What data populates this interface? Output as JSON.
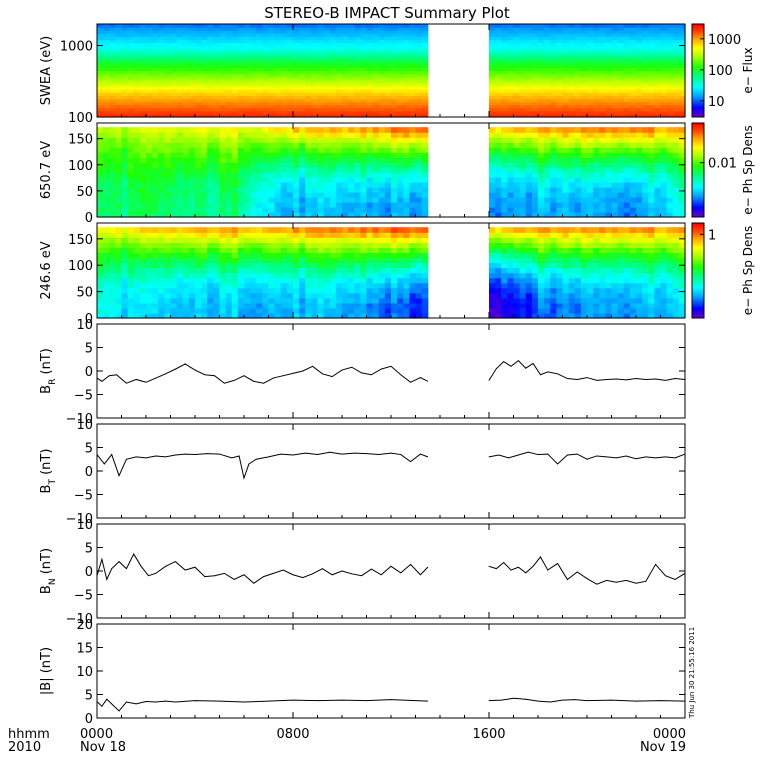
{
  "title": "STEREO-B IMPACT Summary Plot",
  "x_axis": {
    "corner_label_top": "hhmm",
    "corner_label_bottom": "2010",
    "date_start": "Nov 18",
    "date_end": "Nov 19",
    "ticks": [
      {
        "hour": 0,
        "label": "0000"
      },
      {
        "hour": 8,
        "label": "0800"
      },
      {
        "hour": 16,
        "label": "1600"
      },
      {
        "hour": 24,
        "label": "0000"
      }
    ],
    "range_hours": [
      0,
      24
    ]
  },
  "data_gap_hours": [
    13.5,
    16
  ],
  "timestamp_stamp": "Thu Jun 30 21:55:16 2011",
  "colors": {
    "palette": [
      "#6a00c8",
      "#0000ff",
      "#00a0ff",
      "#00ffff",
      "#00ff80",
      "#20ff00",
      "#a0ff00",
      "#ffff00",
      "#ffa000",
      "#ff4000",
      "#ff0000"
    ]
  },
  "panels": {
    "swea": {
      "ylabel": "SWEA (eV)",
      "yscale": "log",
      "ylim": [
        100,
        2000
      ],
      "ticks": [
        {
          "v": 100,
          "label": "100"
        },
        {
          "v": 1000,
          "label": "1000"
        }
      ],
      "colorbar": {
        "label": "e− Flux",
        "scale": "log",
        "range": [
          3,
          3000
        ],
        "ticks": [
          {
            "v": 10,
            "label": "10"
          },
          {
            "v": 100,
            "label": "100"
          },
          {
            "v": 1000,
            "label": "1000"
          }
        ]
      }
    },
    "pad650": {
      "ylabel": "650.7 eV",
      "ylim": [
        0,
        180
      ],
      "ticks": [
        {
          "v": 0,
          "label": "0"
        },
        {
          "v": 50,
          "label": "50"
        },
        {
          "v": 100,
          "label": "100"
        },
        {
          "v": 150,
          "label": "150"
        }
      ],
      "colorbar": {
        "label": "e− Ph Sp Dens",
        "scale": "log",
        "range": [
          0.0015,
          0.04
        ],
        "ticks": [
          {
            "v": 0.01,
            "label": "0.01"
          }
        ]
      }
    },
    "pad246": {
      "ylabel": "246.6 eV",
      "ylim": [
        0,
        180
      ],
      "ticks": [
        {
          "v": 0,
          "label": "0"
        },
        {
          "v": 50,
          "label": "50"
        },
        {
          "v": 100,
          "label": "100"
        },
        {
          "v": 150,
          "label": "150"
        }
      ],
      "colorbar": {
        "label": "e− Ph Sp Dens",
        "scale": "log",
        "range": [
          0.05,
          1.5
        ],
        "ticks": [
          {
            "v": 1,
            "label": "1"
          }
        ]
      }
    },
    "br": {
      "ylabel_base": "B",
      "ylabel_sub": "R",
      "ylabel_unit": " (nT)",
      "ylim": [
        -10,
        10
      ],
      "ticks": [
        {
          "v": -10,
          "label": "−10"
        },
        {
          "v": -5,
          "label": "−5"
        },
        {
          "v": 0,
          "label": "0"
        },
        {
          "v": 5,
          "label": "5"
        },
        {
          "v": 10,
          "label": "10"
        }
      ]
    },
    "bt": {
      "ylabel_base": "B",
      "ylabel_sub": "T",
      "ylabel_unit": " (nT)",
      "ylim": [
        -10,
        10
      ],
      "ticks": [
        {
          "v": -10,
          "label": "−10"
        },
        {
          "v": -5,
          "label": "−5"
        },
        {
          "v": 0,
          "label": "0"
        },
        {
          "v": 5,
          "label": "5"
        },
        {
          "v": 10,
          "label": "10"
        }
      ]
    },
    "bn": {
      "ylabel_base": "B",
      "ylabel_sub": "N",
      "ylabel_unit": " (nT)",
      "ylim": [
        -10,
        10
      ],
      "ticks": [
        {
          "v": -10,
          "label": "−10"
        },
        {
          "v": -5,
          "label": "−5"
        },
        {
          "v": 0,
          "label": "0"
        },
        {
          "v": 5,
          "label": "5"
        },
        {
          "v": 10,
          "label": "10"
        }
      ]
    },
    "bmag": {
      "ylabel": "|B| (nT)",
      "ylim": [
        0,
        20
      ],
      "ticks": [
        {
          "v": 0,
          "label": "0"
        },
        {
          "v": 5,
          "label": "5"
        },
        {
          "v": 10,
          "label": "10"
        },
        {
          "v": 15,
          "label": "15"
        },
        {
          "v": 20,
          "label": "20"
        }
      ]
    }
  },
  "chart_data": [
    {
      "type": "heatmap",
      "panel": "swea",
      "title": "STEREO-B IMPACT Summary Plot",
      "xlabel": "",
      "ylabel": "SWEA (eV)",
      "yscale": "log",
      "ylim": [
        100,
        2000
      ],
      "y": [
        100,
        150,
        250,
        400,
        600,
        1000,
        1500,
        2000
      ],
      "z_log_profile": [
        3.4,
        3.0,
        2.6,
        2.1,
        1.7,
        1.2,
        0.9,
        0.6
      ],
      "colorbar_label": "e− Flux"
    },
    {
      "type": "heatmap",
      "panel": "pad650",
      "ylabel": "650.7 eV",
      "ylim": [
        0,
        180
      ],
      "x": [
        0,
        2,
        4,
        6,
        7.5,
        9,
        11,
        13,
        16.2,
        18,
        20,
        22,
        24
      ],
      "levels_low_pitch": [
        0.4,
        0.42,
        0.38,
        0.4,
        0.22,
        0.22,
        0.22,
        0.2,
        0.2,
        0.22,
        0.22,
        0.2,
        0.3
      ],
      "levels_high_pitch": [
        0.62,
        0.64,
        0.68,
        0.7,
        0.76,
        0.78,
        0.82,
        0.9,
        0.78,
        0.82,
        0.86,
        0.88,
        0.8
      ],
      "colorbar_label": "e− Ph Sp Dens"
    },
    {
      "type": "heatmap",
      "panel": "pad246",
      "ylabel": "246.6 eV",
      "ylim": [
        0,
        180
      ],
      "x": [
        0,
        2,
        4,
        6,
        7.5,
        9,
        11,
        13,
        16.2,
        18,
        20,
        22,
        24
      ],
      "levels_low_pitch": [
        0.3,
        0.24,
        0.22,
        0.24,
        0.22,
        0.22,
        0.2,
        0.12,
        0.05,
        0.15,
        0.2,
        0.22,
        0.24
      ],
      "levels_high_pitch": [
        0.7,
        0.74,
        0.8,
        0.82,
        0.82,
        0.84,
        0.88,
        0.92,
        0.8,
        0.84,
        0.84,
        0.86,
        0.82
      ],
      "colorbar_label": "e− Ph Sp Dens"
    },
    {
      "type": "line",
      "panel": "br",
      "ylabel": "B_R (nT)",
      "ylim": [
        -10,
        10
      ],
      "x": [
        0,
        0.2,
        0.5,
        0.8,
        1.2,
        1.6,
        2.0,
        2.4,
        2.8,
        3.2,
        3.6,
        4.0,
        4.4,
        4.8,
        5.2,
        5.6,
        6.0,
        6.4,
        6.8,
        7.2,
        7.6,
        8.0,
        8.4,
        8.8,
        9.2,
        9.6,
        10.0,
        10.4,
        10.8,
        11.2,
        11.6,
        12.0,
        12.4,
        12.8,
        13.2,
        13.5,
        16.0,
        16.3,
        16.6,
        16.9,
        17.2,
        17.5,
        17.8,
        18.1,
        18.4,
        18.8,
        19.2,
        19.6,
        20.0,
        20.4,
        20.8,
        21.2,
        21.6,
        22.0,
        22.4,
        22.8,
        23.2,
        23.6,
        24.0
      ],
      "y": [
        -1.5,
        -2.2,
        -1.0,
        -0.8,
        -2.6,
        -1.8,
        -2.4,
        -1.5,
        -0.6,
        0.4,
        1.5,
        0.2,
        -0.8,
        -1.0,
        -2.6,
        -2.0,
        -1.0,
        -2.2,
        -2.6,
        -1.5,
        -1.0,
        -0.5,
        0.0,
        1.0,
        -0.6,
        -1.2,
        0.2,
        0.8,
        -0.4,
        -0.8,
        0.4,
        1.0,
        -0.8,
        -2.4,
        -1.4,
        -2.2,
        -2.0,
        0.5,
        2.0,
        1.0,
        2.2,
        0.6,
        1.6,
        -0.8,
        -0.2,
        -0.6,
        -1.6,
        -1.8,
        -1.4,
        -2.0,
        -1.8,
        -1.7,
        -1.9,
        -1.6,
        -1.8,
        -1.7,
        -2.0,
        -1.6,
        -1.8
      ]
    },
    {
      "type": "line",
      "panel": "bt",
      "ylabel": "B_T (nT)",
      "ylim": [
        -10,
        10
      ],
      "x": [
        0,
        0.3,
        0.6,
        0.9,
        1.2,
        1.6,
        2.0,
        2.4,
        2.8,
        3.2,
        3.6,
        4.0,
        4.5,
        5.0,
        5.5,
        5.8,
        6.0,
        6.2,
        6.5,
        7.0,
        7.5,
        8.0,
        8.5,
        9.0,
        9.5,
        10.0,
        10.5,
        11.0,
        11.5,
        12.0,
        12.4,
        12.8,
        13.2,
        13.5,
        16.0,
        16.4,
        16.8,
        17.2,
        17.6,
        18.0,
        18.4,
        18.8,
        19.2,
        19.6,
        20.0,
        20.4,
        20.8,
        21.2,
        21.6,
        22.0,
        22.4,
        22.8,
        23.2,
        23.6,
        24.0
      ],
      "y": [
        3.5,
        1.5,
        3.5,
        -1.0,
        2.5,
        3.0,
        2.8,
        3.2,
        3.0,
        3.4,
        3.6,
        3.5,
        3.7,
        3.6,
        2.8,
        3.2,
        -1.5,
        1.5,
        2.5,
        3.0,
        3.6,
        3.4,
        3.8,
        3.5,
        4.0,
        3.6,
        3.8,
        3.7,
        3.5,
        3.8,
        3.5,
        2.0,
        3.6,
        3.0,
        3.0,
        3.4,
        2.8,
        3.4,
        4.0,
        3.5,
        3.6,
        1.5,
        3.4,
        3.6,
        2.5,
        3.2,
        3.0,
        2.8,
        3.2,
        2.6,
        3.0,
        2.8,
        3.0,
        2.8,
        3.6
      ]
    },
    {
      "type": "line",
      "panel": "bn",
      "ylabel": "B_N (nT)",
      "ylim": [
        -10,
        10
      ],
      "x": [
        0,
        0.2,
        0.4,
        0.6,
        0.9,
        1.2,
        1.5,
        1.8,
        2.1,
        2.4,
        2.8,
        3.2,
        3.6,
        4.0,
        4.4,
        4.8,
        5.2,
        5.6,
        6.0,
        6.4,
        6.8,
        7.2,
        7.6,
        8.0,
        8.4,
        8.8,
        9.2,
        9.6,
        10.0,
        10.4,
        10.8,
        11.2,
        11.6,
        12.0,
        12.4,
        12.8,
        13.2,
        13.5,
        16.0,
        16.3,
        16.6,
        16.9,
        17.2,
        17.5,
        17.8,
        18.1,
        18.4,
        18.8,
        19.2,
        19.6,
        20.0,
        20.4,
        20.8,
        21.2,
        21.6,
        22.0,
        22.4,
        22.8,
        23.2,
        23.6,
        24.0
      ],
      "y": [
        -1.0,
        2.5,
        -1.8,
        0.5,
        2.0,
        0.5,
        3.6,
        1.0,
        -1.0,
        -0.5,
        1.0,
        2.0,
        0.2,
        0.8,
        -1.2,
        -1.0,
        -0.5,
        -1.8,
        -0.8,
        -2.6,
        -1.2,
        -0.5,
        0.2,
        -0.8,
        -1.4,
        -0.6,
        0.5,
        -0.8,
        0.0,
        -0.6,
        -1.0,
        0.4,
        -0.8,
        1.0,
        -0.4,
        1.4,
        -0.8,
        0.8,
        1.0,
        0.5,
        1.8,
        0.2,
        0.8,
        -0.4,
        1.0,
        3.0,
        0.2,
        1.6,
        -1.8,
        -0.2,
        -1.6,
        -2.8,
        -2.0,
        -2.4,
        -2.0,
        -2.6,
        -2.2,
        1.4,
        -1.0,
        -1.8,
        -0.5
      ]
    },
    {
      "type": "line",
      "panel": "bmag",
      "ylabel": "|B| (nT)",
      "ylim": [
        0,
        20
      ],
      "x": [
        0,
        0.2,
        0.4,
        0.6,
        0.9,
        1.2,
        1.6,
        2.0,
        2.4,
        2.8,
        3.2,
        4.0,
        5.0,
        6.0,
        7.0,
        8.0,
        9.0,
        10.0,
        11.0,
        12.0,
        13.0,
        13.5,
        16.0,
        16.5,
        17.0,
        17.5,
        18.0,
        18.5,
        19.0,
        19.5,
        20.0,
        21.0,
        22.0,
        23.0,
        24.0
      ],
      "y": [
        3.5,
        2.5,
        4.0,
        3.0,
        1.5,
        3.4,
        3.0,
        3.5,
        3.4,
        3.6,
        3.4,
        3.7,
        3.6,
        3.4,
        3.6,
        3.8,
        3.7,
        3.8,
        3.7,
        3.9,
        3.7,
        3.6,
        3.7,
        3.8,
        4.2,
        4.0,
        3.6,
        3.4,
        3.8,
        3.9,
        3.7,
        3.8,
        3.6,
        3.7,
        3.6
      ]
    }
  ]
}
